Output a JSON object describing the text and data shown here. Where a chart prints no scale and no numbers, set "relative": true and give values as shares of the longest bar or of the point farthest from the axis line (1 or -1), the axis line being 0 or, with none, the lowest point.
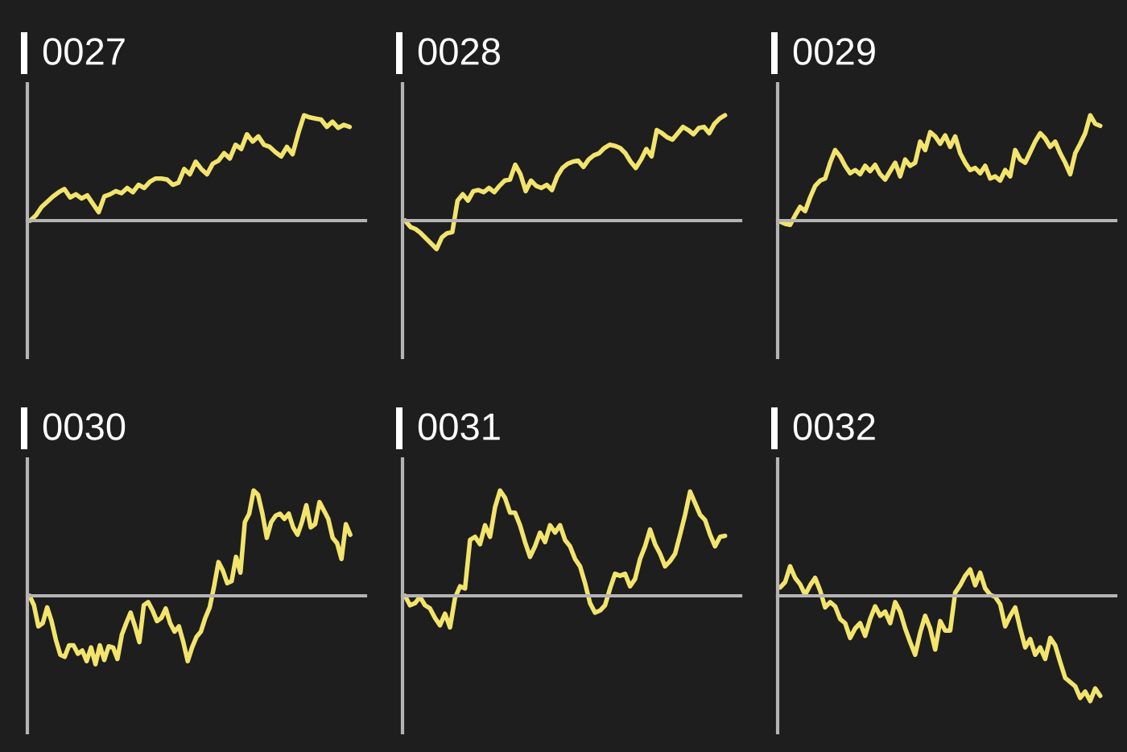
{
  "chart_data": [
    {
      "type": "line",
      "title": "0027",
      "relative": true,
      "color": "#f2e46c",
      "categories": [
        null,
        null,
        null,
        null,
        null,
        null,
        null,
        null,
        null,
        null,
        null,
        null,
        null,
        null,
        null,
        null,
        null,
        null,
        null,
        null,
        null,
        null,
        null,
        null,
        null,
        null,
        null,
        null,
        null,
        null,
        null,
        null,
        null,
        null,
        null,
        null,
        null,
        null,
        null,
        null,
        null,
        null,
        null,
        null,
        null,
        null,
        null,
        null,
        null,
        null,
        null,
        null,
        null,
        null,
        null,
        null,
        null
      ],
      "values": [
        0,
        0.05,
        0.13,
        0.18,
        0.23,
        0.27,
        0.3,
        0.22,
        0.25,
        0.21,
        0.24,
        0.16,
        0.08,
        0.23,
        0.25,
        0.28,
        0.26,
        0.31,
        0.27,
        0.34,
        0.31,
        0.37,
        0.4,
        0.4,
        0.39,
        0.34,
        0.36,
        0.49,
        0.44,
        0.56,
        0.49,
        0.44,
        0.54,
        0.57,
        0.64,
        0.59,
        0.72,
        0.68,
        0.82,
        0.75,
        0.8,
        0.72,
        0.7,
        0.65,
        0.61,
        0.7,
        0.63,
        0.83,
        1,
        0.98,
        0.97,
        0.96,
        0.89,
        0.94,
        0.88,
        0.91,
        0.89
      ]
    },
    {
      "type": "line",
      "title": "0028",
      "relative": true,
      "color": "#f2e46c",
      "categories": [
        null,
        null,
        null,
        null,
        null,
        null,
        null,
        null,
        null,
        null,
        null,
        null,
        null,
        null,
        null,
        null,
        null,
        null,
        null,
        null,
        null,
        null,
        null,
        null,
        null,
        null,
        null,
        null,
        null,
        null,
        null,
        null,
        null,
        null,
        null,
        null,
        null,
        null,
        null,
        null,
        null,
        null,
        null,
        null,
        null,
        null,
        null,
        null,
        null,
        null,
        null,
        null,
        null,
        null,
        null,
        null,
        null,
        null,
        null,
        null,
        null,
        null
      ],
      "values": [
        0,
        -0.06,
        -0.08,
        -0.12,
        -0.17,
        -0.22,
        -0.27,
        -0.16,
        -0.12,
        -0.11,
        0.19,
        0.25,
        0.19,
        0.28,
        0.29,
        0.27,
        0.31,
        0.27,
        0.33,
        0.38,
        0.39,
        0.53,
        0.44,
        0.28,
        0.38,
        0.33,
        0.31,
        0.34,
        0.29,
        0.42,
        0.5,
        0.54,
        0.56,
        0.57,
        0.51,
        0.58,
        0.62,
        0.64,
        0.69,
        0.72,
        0.71,
        0.69,
        0.64,
        0.56,
        0.5,
        0.58,
        0.68,
        0.61,
        0.86,
        0.83,
        0.79,
        0.77,
        0.83,
        0.89,
        0.86,
        0.82,
        0.88,
        0.89,
        0.83,
        0.92,
        0.97,
        1
      ]
    },
    {
      "type": "line",
      "title": "0029",
      "relative": true,
      "color": "#f2e46c",
      "categories": [
        null,
        null,
        null,
        null,
        null,
        null,
        null,
        null,
        null,
        null,
        null,
        null,
        null,
        null,
        null,
        null,
        null,
        null,
        null,
        null,
        null,
        null,
        null,
        null,
        null,
        null,
        null,
        null,
        null,
        null,
        null,
        null,
        null,
        null,
        null,
        null,
        null,
        null,
        null,
        null,
        null,
        null,
        null,
        null,
        null,
        null,
        null,
        null,
        null,
        null,
        null,
        null,
        null,
        null,
        null,
        null,
        null,
        null,
        null,
        null,
        null,
        null,
        null,
        null,
        null
      ],
      "values": [
        -0.01,
        -0.03,
        -0.04,
        0.05,
        0.13,
        0.09,
        0.22,
        0.33,
        0.38,
        0.4,
        0.55,
        0.67,
        0.61,
        0.52,
        0.45,
        0.48,
        0.44,
        0.52,
        0.47,
        0.53,
        0.44,
        0.39,
        0.47,
        0.55,
        0.42,
        0.58,
        0.52,
        0.55,
        0.75,
        0.67,
        0.84,
        0.8,
        0.73,
        0.81,
        0.7,
        0.8,
        0.64,
        0.55,
        0.48,
        0.5,
        0.45,
        0.52,
        0.4,
        0.42,
        0.38,
        0.48,
        0.42,
        0.67,
        0.58,
        0.55,
        0.65,
        0.75,
        0.83,
        0.78,
        0.7,
        0.75,
        0.64,
        0.55,
        0.44,
        0.64,
        0.73,
        0.83,
        1,
        0.92,
        0.9
      ]
    },
    {
      "type": "line",
      "title": "0030",
      "relative": true,
      "color": "#f2e46c",
      "categories": [
        null,
        null,
        null,
        null,
        null,
        null,
        null,
        null,
        null,
        null,
        null,
        null,
        null,
        null,
        null,
        null,
        null,
        null,
        null,
        null,
        null,
        null,
        null,
        null,
        null,
        null,
        null,
        null,
        null,
        null,
        null,
        null,
        null,
        null,
        null,
        null,
        null,
        null,
        null,
        null,
        null,
        null,
        null,
        null,
        null,
        null,
        null,
        null,
        null,
        null,
        null,
        null,
        null,
        null,
        null,
        null,
        null,
        null,
        null,
        null,
        null,
        null,
        null,
        null,
        null,
        null,
        null,
        null,
        null,
        null,
        null,
        null,
        null,
        null
      ],
      "values": [
        0,
        -0.09,
        -0.29,
        -0.26,
        -0.11,
        -0.24,
        -0.42,
        -0.56,
        -0.58,
        -0.47,
        -0.47,
        -0.55,
        -0.52,
        -0.62,
        -0.49,
        -0.65,
        -0.47,
        -0.61,
        -0.48,
        -0.49,
        -0.6,
        -0.37,
        -0.26,
        -0.16,
        -0.29,
        -0.44,
        -0.09,
        -0.06,
        -0.14,
        -0.24,
        -0.21,
        -0.12,
        -0.26,
        -0.34,
        -0.29,
        -0.44,
        -0.62,
        -0.49,
        -0.39,
        -0.34,
        -0.21,
        -0.11,
        0.09,
        0.32,
        0.24,
        0.12,
        0.14,
        0.37,
        0.22,
        0.7,
        0.78,
        1,
        0.96,
        0.78,
        0.55,
        0.7,
        0.76,
        0.78,
        0.73,
        0.78,
        0.65,
        0.58,
        0.7,
        0.86,
        0.65,
        0.68,
        0.89,
        0.81,
        0.73,
        0.55,
        0.5,
        0.35,
        0.68,
        0.58
      ]
    },
    {
      "type": "line",
      "title": "0031",
      "relative": true,
      "color": "#f2e46c",
      "categories": [
        null,
        null,
        null,
        null,
        null,
        null,
        null,
        null,
        null,
        null,
        null,
        null,
        null,
        null,
        null,
        null,
        null,
        null,
        null,
        null,
        null,
        null,
        null,
        null,
        null,
        null,
        null,
        null,
        null,
        null,
        null,
        null,
        null,
        null,
        null,
        null,
        null,
        null,
        null,
        null,
        null,
        null,
        null,
        null,
        null,
        null,
        null,
        null,
        null,
        null,
        null,
        null,
        null,
        null,
        null,
        null,
        null,
        null,
        null,
        null,
        null,
        null,
        null,
        null,
        null
      ],
      "values": [
        0,
        -0.09,
        -0.07,
        -0.01,
        -0.09,
        -0.12,
        -0.21,
        -0.28,
        -0.17,
        -0.3,
        -0.02,
        0.09,
        0.07,
        0.53,
        0.56,
        0.49,
        0.67,
        0.56,
        0.84,
        1,
        0.93,
        0.79,
        0.79,
        0.67,
        0.51,
        0.37,
        0.47,
        0.6,
        0.51,
        0.67,
        0.6,
        0.67,
        0.53,
        0.47,
        0.35,
        0.28,
        0.12,
        -0.07,
        -0.16,
        -0.14,
        -0.09,
        0.07,
        0.21,
        0.19,
        0.21,
        0.09,
        0.16,
        0.35,
        0.47,
        0.63,
        0.49,
        0.4,
        0.28,
        0.33,
        0.4,
        0.58,
        0.77,
        0.99,
        0.88,
        0.77,
        0.72,
        0.58,
        0.47,
        0.56,
        0.57
      ]
    },
    {
      "type": "line",
      "title": "0032",
      "relative": true,
      "color": "#f2e46c",
      "categories": [
        null,
        null,
        null,
        null,
        null,
        null,
        null,
        null,
        null,
        null,
        null,
        null,
        null,
        null,
        null,
        null,
        null,
        null,
        null,
        null,
        null,
        null,
        null,
        null,
        null,
        null,
        null,
        null,
        null,
        null,
        null,
        null,
        null,
        null,
        null,
        null,
        null,
        null,
        null,
        null,
        null,
        null,
        null,
        null,
        null,
        null,
        null,
        null,
        null,
        null,
        null,
        null,
        null,
        null,
        null,
        null,
        null,
        null,
        null,
        null,
        null,
        null,
        null,
        null,
        null
      ],
      "values": [
        0.08,
        0.13,
        0.28,
        0.17,
        0.11,
        0.01,
        0.1,
        0.17,
        0.05,
        -0.11,
        -0.06,
        -0.1,
        -0.22,
        -0.26,
        -0.4,
        -0.31,
        -0.26,
        -0.38,
        -0.22,
        -0.1,
        -0.19,
        -0.15,
        -0.26,
        -0.06,
        -0.15,
        -0.31,
        -0.44,
        -0.56,
        -0.35,
        -0.19,
        -0.31,
        -0.51,
        -0.24,
        -0.33,
        -0.33,
        0.03,
        0.1,
        0.19,
        0.25,
        0.1,
        0.22,
        0.07,
        0.01,
        -0.01,
        -0.08,
        -0.29,
        -0.19,
        -0.11,
        -0.31,
        -0.49,
        -0.41,
        -0.56,
        -0.49,
        -0.6,
        -0.4,
        -0.47,
        -0.63,
        -0.78,
        -0.82,
        -0.86,
        -0.97,
        -0.91,
        -1,
        -0.88,
        -0.95
      ]
    }
  ]
}
